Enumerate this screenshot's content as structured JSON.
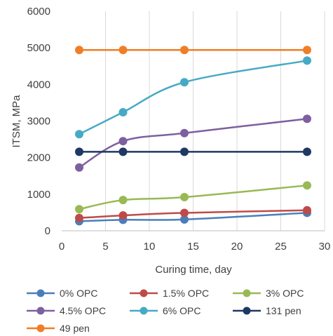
{
  "chart_data": {
    "type": "line",
    "title": "",
    "xlabel": "Curing time, day",
    "ylabel": "ITSM, MPa",
    "xlim": [
      0,
      30
    ],
    "ylim": [
      0,
      6000
    ],
    "xticks": [
      0,
      5,
      10,
      15,
      20,
      25,
      30
    ],
    "yticks": [
      0,
      1000,
      2000,
      3000,
      4000,
      5000,
      6000
    ],
    "x": [
      2,
      7,
      14,
      28
    ],
    "grid": {
      "horizontal": false,
      "vertical": true
    },
    "legend_position": "bottom",
    "series": [
      {
        "name": "0% OPC",
        "color": "#4a7ebb",
        "values": [
          260,
          300,
          310,
          490
        ],
        "smooth": true
      },
      {
        "name": "1.5% OPC",
        "color": "#be4b48",
        "values": [
          350,
          420,
          490,
          560
        ],
        "smooth": true
      },
      {
        "name": "3% OPC",
        "color": "#98b954",
        "values": [
          590,
          840,
          920,
          1240
        ],
        "smooth": true
      },
      {
        "name": "4.5% OPC",
        "color": "#7d60a0",
        "values": [
          1730,
          2450,
          2670,
          3060
        ],
        "smooth": true
      },
      {
        "name": "6% OPC",
        "color": "#46aac5",
        "values": [
          2640,
          3240,
          4060,
          4650
        ],
        "smooth": true
      },
      {
        "name": "131 pen",
        "color": "#1f3864",
        "values": [
          2160,
          2160,
          2160,
          2160
        ],
        "smooth": false
      },
      {
        "name": "49 pen",
        "color": "#f07e26",
        "values": [
          4940,
          4940,
          4940,
          4940
        ],
        "smooth": false
      }
    ]
  }
}
